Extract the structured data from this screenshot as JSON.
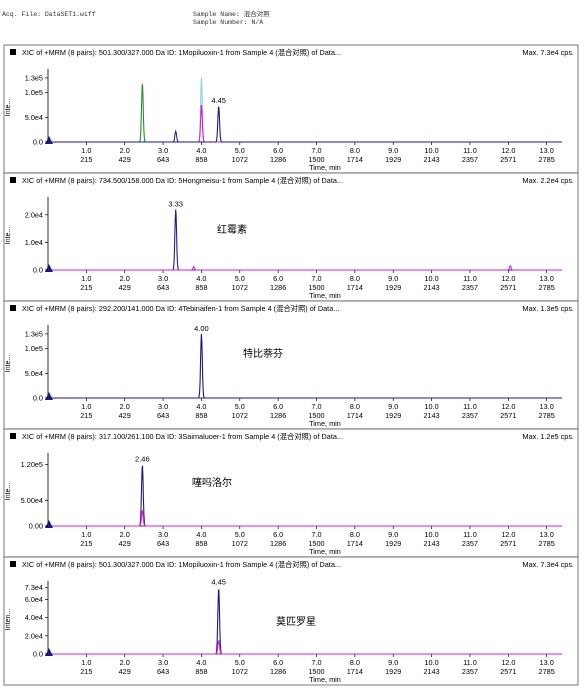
{
  "header": {
    "acq_file": "Acq. File: DataSET1.wiff",
    "sample_name": "Sample Name: 混合对照",
    "sample_number": "Sample Number: N/A"
  },
  "chart_data": [
    {
      "type": "line",
      "title": "XIC of +MRM (8 pairs): 501.300/327.000 Da ID: 1Mopiluoxin-1 from Sample 4 (混合对照) of Data...",
      "max_label": "Max. 7.3e4 cps.",
      "ylabel": "Inte...",
      "xlabel": "Time, min",
      "xlim": [
        0,
        13.4
      ],
      "ylim": [
        0,
        140000
      ],
      "x_ticks": [
        1.0,
        2.0,
        3.0,
        4.0,
        5.0,
        6.0,
        7.0,
        8.0,
        9.0,
        10.0,
        11.0,
        12.0,
        13.0
      ],
      "x_tick_labels": [
        "1.0",
        "2.0",
        "3.0",
        "4.0",
        "5.0",
        "6.0",
        "7.0",
        "8.0",
        "9.0",
        "10.0",
        "11.0",
        "12.0",
        "13.0"
      ],
      "cycle_labels": [
        "215",
        "429",
        "643",
        "858",
        "1072",
        "1286",
        "1500",
        "1714",
        "1929",
        "2143",
        "2357",
        "2571",
        "2785"
      ],
      "y_ticks": [
        0,
        50000,
        100000,
        130000
      ],
      "y_tick_labels": [
        "0.0",
        "5.0e4",
        "1.0e5",
        "1.3e5"
      ],
      "peak_labels": [
        {
          "x": 4.45,
          "y": 73000,
          "label": "4.45"
        }
      ],
      "annotation": "",
      "series": [
        {
          "color": "#2e8b2e",
          "peaks": [
            {
              "x": 2.46,
              "h": 120000
            }
          ]
        },
        {
          "color": "#3a2a7a",
          "peaks": [
            {
              "x": 3.33,
              "h": 22000
            }
          ]
        },
        {
          "color": "#8fd0e8",
          "peaks": [
            {
              "x": 4.0,
              "h": 130000
            }
          ]
        },
        {
          "color": "#d61fd6",
          "peaks": [
            {
              "x": 4.0,
              "h": 75000
            }
          ]
        },
        {
          "color": "#1a1a80",
          "peaks": [
            {
              "x": 4.45,
              "h": 73000
            }
          ]
        }
      ]
    },
    {
      "type": "line",
      "title": "XIC of +MRM (8 pairs): 734.500/158.000 Da ID: 5Hongmeisu-1 from Sample 4 (混合对照) of Data...",
      "max_label": "Max. 2.2e4 cps.",
      "ylabel": "Inte...",
      "xlabel": "Time, min",
      "xlim": [
        0,
        13.4
      ],
      "ylim": [
        0,
        25000
      ],
      "x_ticks": [
        1.0,
        2.0,
        3.0,
        4.0,
        5.0,
        6.0,
        7.0,
        8.0,
        9.0,
        10.0,
        11.0,
        12.0,
        13.0
      ],
      "x_tick_labels": [
        "1.0",
        "2.0",
        "3.0",
        "4.0",
        "5.0",
        "6.0",
        "7.0",
        "8.0",
        "9.0",
        "10.0",
        "11.0",
        "12.0",
        "13.0"
      ],
      "cycle_labels": [
        "215",
        "429",
        "643",
        "858",
        "1072",
        "1286",
        "1500",
        "1714",
        "1929",
        "2143",
        "2357",
        "2571",
        "2785"
      ],
      "y_ticks": [
        0,
        10000,
        20000
      ],
      "y_tick_labels": [
        "0.0",
        "1.0e4",
        "2.0e4"
      ],
      "peak_labels": [
        {
          "x": 3.33,
          "y": 22000,
          "label": "3.33"
        }
      ],
      "annotation": "红霉素",
      "series": [
        {
          "color": "#2a1a80",
          "peaks": [
            {
              "x": 3.33,
              "h": 22000
            }
          ]
        },
        {
          "color": "#d61fd6",
          "peaks": [
            {
              "x": 3.8,
              "h": 1200
            },
            {
              "x": 12.05,
              "h": 1500
            }
          ]
        }
      ]
    },
    {
      "type": "line",
      "title": "XIC of +MRM (8 pairs): 292.200/141.000 Da ID: 4Tebinaifen-1 from Sample 4 (混合对照) of Data...",
      "max_label": "Max. 1.3e5 cps.",
      "ylabel": "Inte...",
      "xlabel": "Time, min",
      "xlim": [
        0,
        13.4
      ],
      "ylim": [
        0,
        140000
      ],
      "x_ticks": [
        1.0,
        2.0,
        3.0,
        4.0,
        5.0,
        6.0,
        7.0,
        8.0,
        9.0,
        10.0,
        11.0,
        12.0,
        13.0
      ],
      "x_tick_labels": [
        "1.0",
        "2.0",
        "3.0",
        "4.0",
        "5.0",
        "6.0",
        "7.0",
        "8.0",
        "9.0",
        "10.0",
        "11.0",
        "12.0",
        "13.0"
      ],
      "cycle_labels": [
        "215",
        "429",
        "643",
        "858",
        "1072",
        "1286",
        "1500",
        "1714",
        "1929",
        "2143",
        "2357",
        "2571",
        "2785"
      ],
      "y_ticks": [
        0,
        50000,
        100000,
        130000
      ],
      "y_tick_labels": [
        "0.0",
        "5.0e4",
        "1.0e5",
        "1.3e5"
      ],
      "peak_labels": [
        {
          "x": 4.0,
          "y": 130000,
          "label": "4.00"
        }
      ],
      "annotation": "特比萘芬",
      "series": [
        {
          "color": "#1a1a80",
          "peaks": [
            {
              "x": 4.0,
              "h": 130000
            }
          ]
        }
      ]
    },
    {
      "type": "line",
      "title": "XIC of +MRM (8 pairs): 317.100/261.100 Da ID: 3Saimaluoer-1 from Sample 4 (混合对照) of Data...",
      "max_label": "Max. 1.2e5 cps.",
      "ylabel": "Inte...",
      "xlabel": "Time, min",
      "xlim": [
        0,
        13.4
      ],
      "ylim": [
        0,
        135000
      ],
      "x_ticks": [
        1.0,
        2.0,
        3.0,
        4.0,
        5.0,
        6.0,
        7.0,
        8.0,
        9.0,
        10.0,
        11.0,
        12.0,
        13.0
      ],
      "x_tick_labels": [
        "1.0",
        "2.0",
        "3.0",
        "4.0",
        "5.0",
        "6.0",
        "7.0",
        "8.0",
        "9.0",
        "10.0",
        "11.0",
        "12.0",
        "13.0"
      ],
      "cycle_labels": [
        "215",
        "429",
        "643",
        "858",
        "1072",
        "1286",
        "1500",
        "1714",
        "1929",
        "2143",
        "2357",
        "2571",
        "2785"
      ],
      "y_ticks": [
        0,
        50000,
        120000
      ],
      "y_tick_labels": [
        "0.00",
        "5.00e4",
        "1.20e5"
      ],
      "peak_labels": [
        {
          "x": 2.46,
          "y": 120000,
          "label": "2.46"
        }
      ],
      "annotation": "噻吗洛尔",
      "series": [
        {
          "color": "#1a1a80",
          "peaks": [
            {
              "x": 2.46,
              "h": 120000
            }
          ]
        },
        {
          "color": "#d61fd6",
          "peaks": [
            {
              "x": 2.46,
              "h": 30000
            }
          ]
        }
      ]
    },
    {
      "type": "line",
      "title": "XIC of +MRM (8 pairs): 501.300/327.000 Da ID: 1Mopiluoxin-1 from Sample 4 (混合对照) of Data...",
      "max_label": "Max. 7.3e4 cps.",
      "ylabel": "Inten...",
      "xlabel": "Time, min",
      "xlim": [
        0,
        13.4
      ],
      "ylim": [
        0,
        76000
      ],
      "x_ticks": [
        1.0,
        2.0,
        3.0,
        4.0,
        5.0,
        6.0,
        7.0,
        8.0,
        9.0,
        10.0,
        11.0,
        12.0,
        13.0
      ],
      "x_tick_labels": [
        "1.0",
        "2.0",
        "3.0",
        "4.0",
        "5.0",
        "6.0",
        "7.0",
        "8.0",
        "9.0",
        "10.0",
        "11.0",
        "12.0",
        "13.0"
      ],
      "cycle_labels": [
        "215",
        "429",
        "643",
        "858",
        "1072",
        "1286",
        "1500",
        "1714",
        "1929",
        "2143",
        "2357",
        "2571",
        "2785"
      ],
      "y_ticks": [
        0,
        20000,
        40000,
        60000,
        73000
      ],
      "y_tick_labels": [
        "0.0",
        "2.0e4",
        "4.0e4",
        "6.0e4",
        "7.3e4"
      ],
      "peak_labels": [
        {
          "x": 4.45,
          "y": 73000,
          "label": "4.45"
        }
      ],
      "annotation": "莫匹罗星",
      "series": [
        {
          "color": "#1a1a80",
          "peaks": [
            {
              "x": 4.45,
              "h": 73000
            }
          ]
        },
        {
          "color": "#d61fd6",
          "peaks": [
            {
              "x": 4.45,
              "h": 15000
            }
          ]
        }
      ]
    }
  ]
}
